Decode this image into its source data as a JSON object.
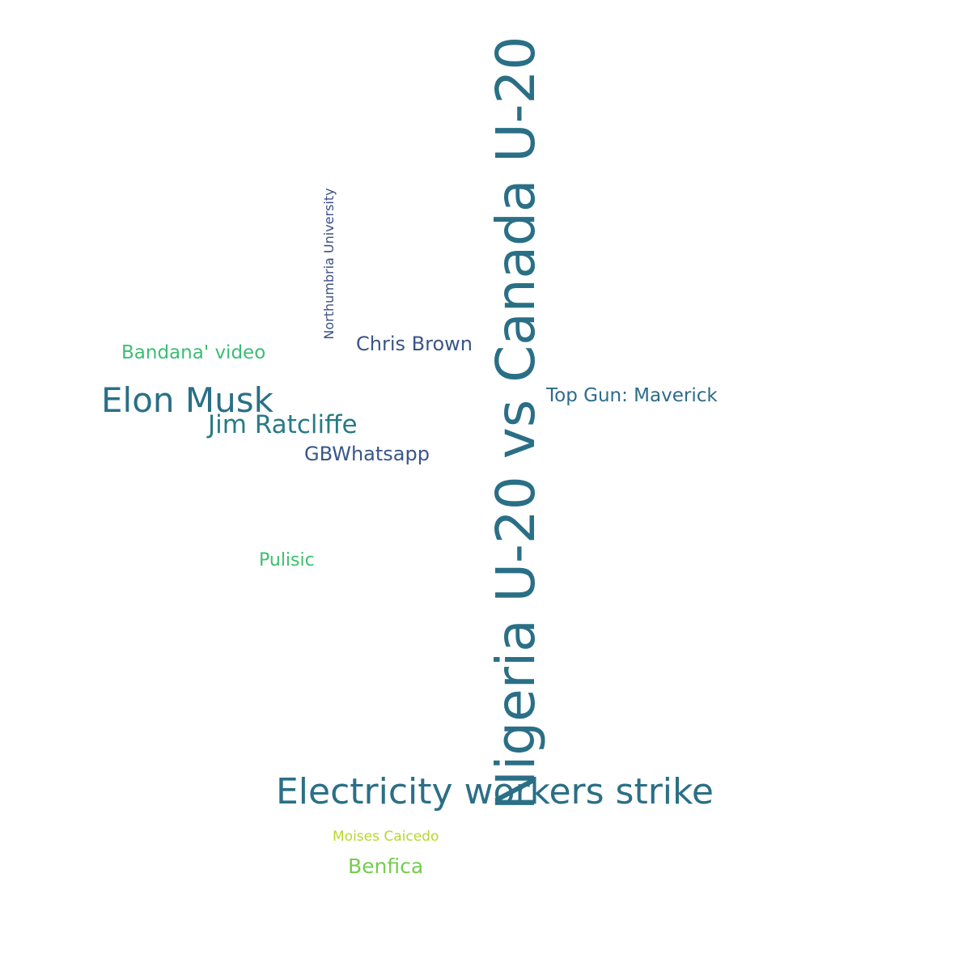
{
  "words": [
    {
      "id": "nigeria",
      "text": "Nigeria U-20 vs Canada U-20",
      "color": "#2a6f86"
    },
    {
      "id": "electricity",
      "text": "Electricity workers strike",
      "color": "#2a6f86"
    },
    {
      "id": "elon",
      "text": "Elon Musk",
      "color": "#2a6f86"
    },
    {
      "id": "jim",
      "text": "Jim Ratcliffe",
      "color": "#287b84"
    },
    {
      "id": "topgun",
      "text": "Top Gun: Maverick",
      "color": "#2d6b8a"
    },
    {
      "id": "chris",
      "text": "Chris Brown",
      "color": "#3a5589"
    },
    {
      "id": "gbwhatsapp",
      "text": "GBWhatsapp",
      "color": "#3a5589"
    },
    {
      "id": "bandana",
      "text": "Bandana' video",
      "color": "#3bbd75"
    },
    {
      "id": "pulisic",
      "text": "Pulisic",
      "color": "#3dbf6f"
    },
    {
      "id": "northumbria",
      "text": "Northumbria University",
      "color": "#3b4f86"
    },
    {
      "id": "moises",
      "text": "Moises Caicedo",
      "color": "#b7d82b"
    },
    {
      "id": "benfica",
      "text": "Benfica",
      "color": "#74cc4e"
    }
  ]
}
